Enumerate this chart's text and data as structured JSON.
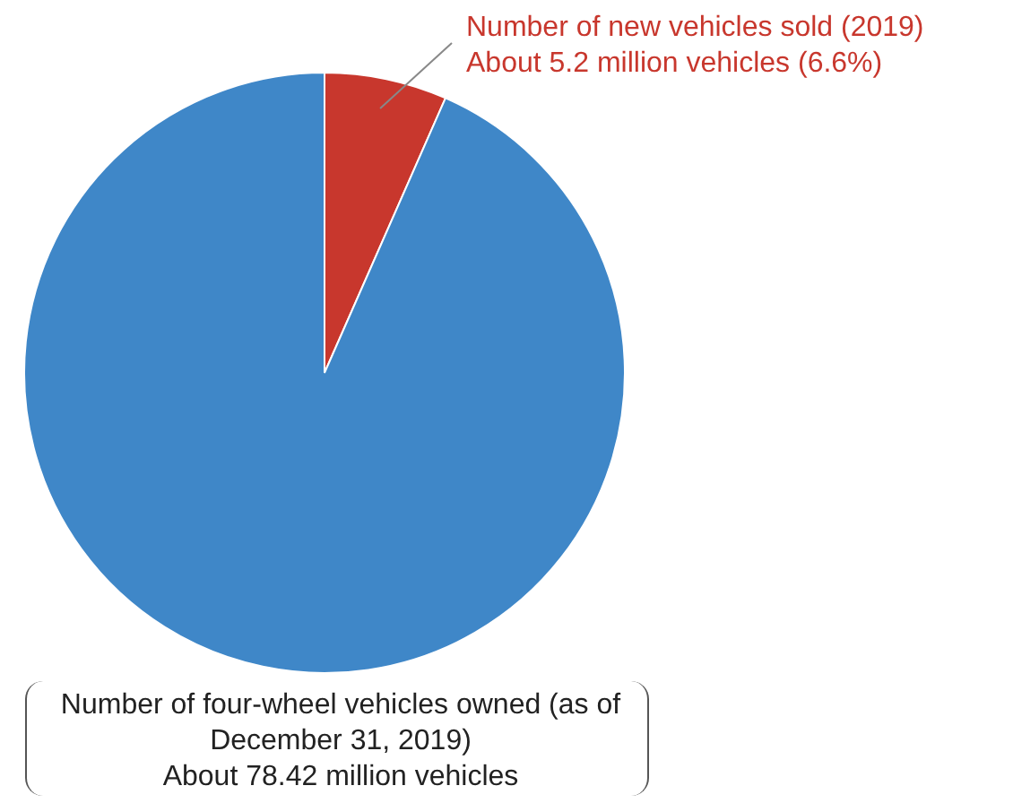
{
  "chart_data": {
    "type": "pie",
    "categories": [
      "Number of new vehicles sold (2019)",
      "Number of four-wheel vehicles owned (as of December 31, 2019)"
    ],
    "values": [
      6.6,
      93.4
    ],
    "value_labels": [
      "About 5.2 million vehicles (6.6%)",
      "About 78.42 million vehicles"
    ],
    "colors": [
      "#c8372d",
      "#3f87c8"
    ],
    "legend": false
  }
}
